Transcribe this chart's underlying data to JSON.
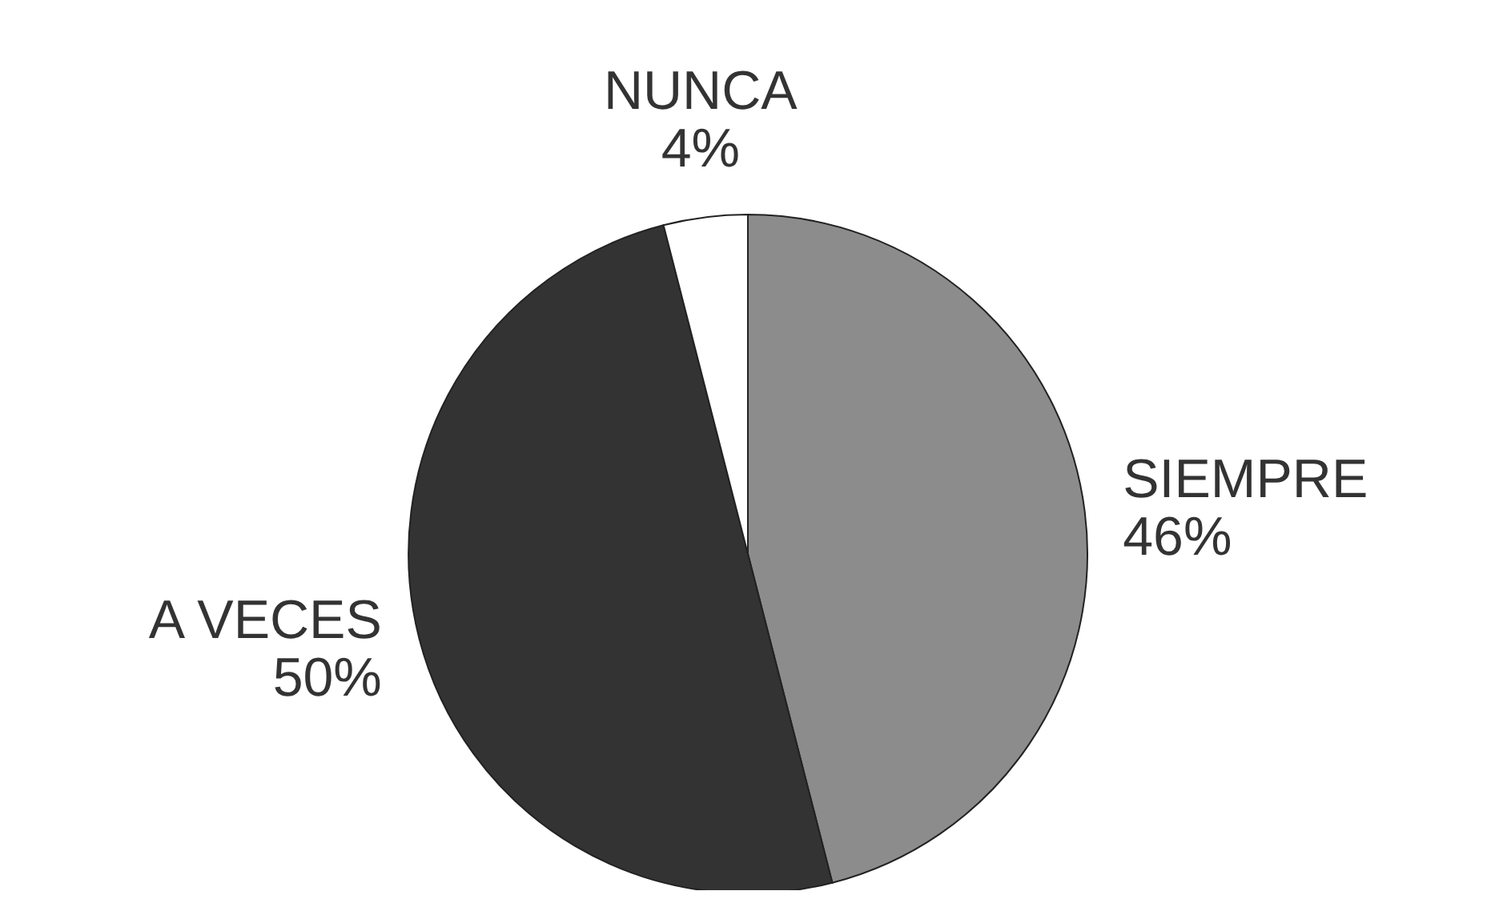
{
  "chart_data": {
    "type": "pie",
    "categories": [
      "SIEMPRE",
      "A VECES",
      "NUNCA"
    ],
    "values": [
      46,
      50,
      4
    ],
    "value_labels": [
      "46%",
      "50%",
      "4%"
    ],
    "colors": [
      "#8c8c8c",
      "#333333",
      "#ffffff"
    ]
  }
}
